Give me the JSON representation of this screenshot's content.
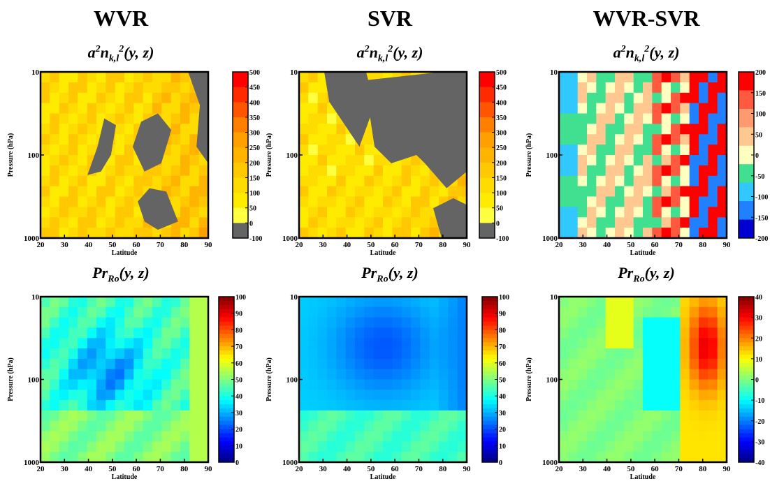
{
  "columns": [
    {
      "title": "WVR"
    },
    {
      "title": "SVR"
    },
    {
      "title": "WVR-SVR"
    }
  ],
  "row_titles": [
    {
      "base": "a",
      "sup1": "2",
      "mid": "n",
      "sub": "k,l",
      "sup2": "2",
      "tail": "(y, z)"
    },
    {
      "base": "Pr",
      "sub": "Ro",
      "tail": "(y, z)"
    }
  ],
  "colors": {
    "negative_gray": "#646464",
    "jet_low": "#00008f",
    "jet_high": "#800000"
  },
  "chart_data": [
    {
      "type": "heatmap",
      "panel": "WVR a2nkl2",
      "xlabel": "Latitude",
      "ylabel": "Pressure (hPa)",
      "x_ticks": [
        "20",
        "30",
        "40",
        "50",
        "60",
        "70",
        "80",
        "90"
      ],
      "y_ticks": [
        "10",
        "100",
        "1000"
      ],
      "y_scale": "log",
      "ylim": [
        1000,
        10
      ],
      "xlim": [
        20,
        90
      ],
      "colorbar": {
        "ticks": [
          "500",
          "450",
          "400",
          "350",
          "300",
          "250",
          "200",
          "150",
          "100",
          "50",
          "0",
          "-100"
        ],
        "colors": [
          "#ff0000",
          "#ff2a00",
          "#ff5500",
          "#ff7f00",
          "#ff9f00",
          "#ffb400",
          "#ffc800",
          "#ffdc00",
          "#ffeb00",
          "#ffff40",
          "#646464"
        ]
      }
    },
    {
      "type": "heatmap",
      "panel": "SVR a2nkl2",
      "xlabel": "Latitude",
      "ylabel": "Pressure (hPa)",
      "x_ticks": [
        "20",
        "30",
        "40",
        "50",
        "60",
        "70",
        "80",
        "90"
      ],
      "y_ticks": [
        "10",
        "100",
        "1000"
      ],
      "y_scale": "log",
      "ylim": [
        1000,
        10
      ],
      "xlim": [
        20,
        90
      ],
      "colorbar": {
        "ticks": [
          "500",
          "450",
          "400",
          "350",
          "300",
          "250",
          "200",
          "150",
          "100",
          "50",
          "0",
          "-100"
        ],
        "colors": [
          "#ff0000",
          "#ff2a00",
          "#ff5500",
          "#ff7f00",
          "#ff9f00",
          "#ffb400",
          "#ffc800",
          "#ffdc00",
          "#ffeb00",
          "#ffff40",
          "#646464"
        ]
      }
    },
    {
      "type": "heatmap",
      "panel": "WVR-SVR a2nkl2",
      "xlabel": "Latitude",
      "ylabel": "Pressure (hPa)",
      "x_ticks": [
        "20",
        "30",
        "40",
        "50",
        "60",
        "70",
        "80",
        "90"
      ],
      "y_ticks": [
        "10",
        "100",
        "1000"
      ],
      "y_scale": "log",
      "ylim": [
        1000,
        10
      ],
      "xlim": [
        20,
        90
      ],
      "colorbar": {
        "ticks": [
          "200",
          "150",
          "100",
          "50",
          "0",
          "-50",
          "-100",
          "-150",
          "-200"
        ],
        "colors": [
          "#ff0000",
          "#ff5a40",
          "#ff9a70",
          "#ffc890",
          "#ffffc0",
          "#40e090",
          "#30c8ff",
          "#2080ff",
          "#0000d0"
        ]
      }
    },
    {
      "type": "heatmap",
      "panel": "WVR PrRo",
      "xlabel": "Latitude",
      "ylabel": "Pressure (hPa)",
      "x_ticks": [
        "20",
        "30",
        "40",
        "50",
        "60",
        "70",
        "80",
        "90"
      ],
      "y_ticks": [
        "10",
        "100",
        "1000"
      ],
      "y_scale": "log",
      "ylim": [
        1000,
        10
      ],
      "xlim": [
        20,
        90
      ],
      "colorbar": {
        "ticks": [
          "100",
          "90",
          "80",
          "70",
          "60",
          "50",
          "40",
          "30",
          "20",
          "10",
          "0"
        ],
        "colormap": "jet"
      }
    },
    {
      "type": "heatmap",
      "panel": "SVR PrRo",
      "xlabel": "Latitude",
      "ylabel": "Pressure (hPa)",
      "x_ticks": [
        "20",
        "30",
        "40",
        "50",
        "60",
        "70",
        "80",
        "90"
      ],
      "y_ticks": [
        "10",
        "100",
        "1000"
      ],
      "y_scale": "log",
      "ylim": [
        1000,
        10
      ],
      "xlim": [
        20,
        90
      ],
      "colorbar": {
        "ticks": [
          "100",
          "90",
          "80",
          "70",
          "60",
          "50",
          "40",
          "30",
          "20",
          "10",
          "0"
        ],
        "colormap": "jet"
      }
    },
    {
      "type": "heatmap",
      "panel": "WVR-SVR PrRo",
      "xlabel": "Latitude",
      "ylabel": "Pressure (hPa)",
      "x_ticks": [
        "20",
        "30",
        "40",
        "50",
        "60",
        "70",
        "80",
        "90"
      ],
      "y_ticks": [
        "10",
        "100",
        "1000"
      ],
      "y_scale": "log",
      "ylim": [
        1000,
        10
      ],
      "xlim": [
        20,
        90
      ],
      "colorbar": {
        "ticks": [
          "40",
          "30",
          "20",
          "10",
          "0",
          "-10",
          "-20",
          "-30",
          "-40"
        ],
        "colormap": "jet"
      }
    }
  ]
}
